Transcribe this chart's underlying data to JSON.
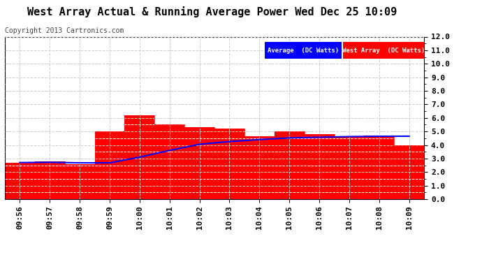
{
  "title": "West Array Actual & Running Average Power Wed Dec 25 10:09",
  "copyright": "Copyright 2013 Cartronics.com",
  "x_labels": [
    "09:56",
    "09:57",
    "09:58",
    "09:59",
    "10:00",
    "10:01",
    "10:02",
    "10:03",
    "10:04",
    "10:05",
    "10:06",
    "10:07",
    "10:08",
    "10:09"
  ],
  "bar_values": [
    2.7,
    2.8,
    2.6,
    5.0,
    6.2,
    5.5,
    5.3,
    5.2,
    4.65,
    5.0,
    4.8,
    4.65,
    4.7,
    4.0
  ],
  "avg_values": [
    2.7,
    2.72,
    2.68,
    2.68,
    3.1,
    3.6,
    4.05,
    4.25,
    4.4,
    4.52,
    4.57,
    4.62,
    4.64,
    4.65
  ],
  "bar_color": "#ff0000",
  "avg_line_color": "#0000ff",
  "background_color": "#ffffff",
  "ylim": [
    0,
    12
  ],
  "yticks": [
    0.0,
    1.0,
    2.0,
    3.0,
    4.0,
    5.0,
    6.0,
    7.0,
    8.0,
    9.0,
    10.0,
    11.0,
    12.0
  ],
  "legend_avg_bg": "#0000ff",
  "legend_west_bg": "#ff0000",
  "legend_avg_text": "Average  (DC Watts)",
  "legend_west_text": "West Array  (DC Watts)",
  "grid_minor_color": "#ffffff",
  "grid_major_color": "#cccccc",
  "title_fontsize": 11,
  "copyright_fontsize": 7,
  "tick_fontsize": 8
}
